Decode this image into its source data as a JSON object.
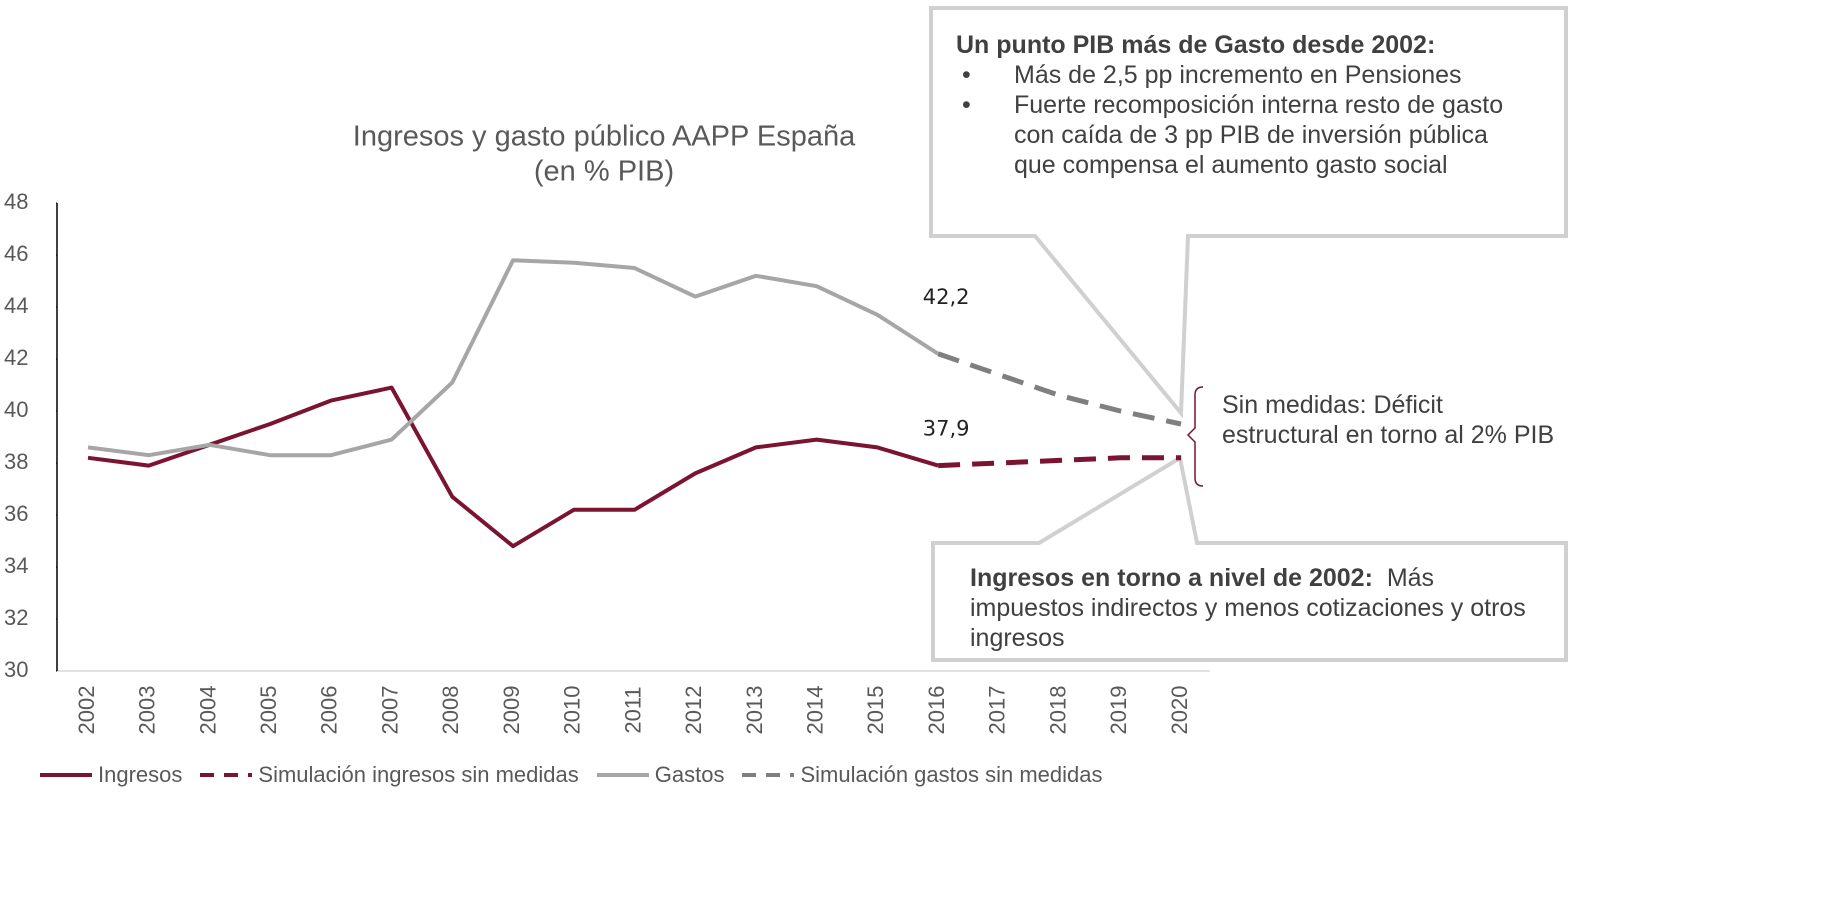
{
  "chart_data": {
    "type": "line",
    "title": "Ingresos y gasto público AAPP España",
    "subtitle": "(en % PIB)",
    "categories": [
      "2002",
      "2003",
      "2004",
      "2005",
      "2006",
      "2007",
      "2008",
      "2009",
      "2010",
      "2011",
      "2012",
      "2013",
      "2014",
      "2015",
      "2016",
      "2017",
      "2018",
      "2019",
      "2020"
    ],
    "ylim": [
      30,
      48
    ],
    "yticks": [
      30,
      32,
      34,
      36,
      38,
      40,
      42,
      44,
      46,
      48
    ],
    "series": [
      {
        "name": "Ingresos",
        "color": "#7b1431",
        "dashed": false,
        "values": [
          38.2,
          37.9,
          38.7,
          39.5,
          40.4,
          40.9,
          36.7,
          34.8,
          36.2,
          36.2,
          37.6,
          38.6,
          38.9,
          38.6,
          37.9,
          null,
          null,
          null,
          null
        ],
        "value_labels": [
          null,
          null,
          null,
          null,
          null,
          null,
          null,
          null,
          null,
          null,
          null,
          null,
          null,
          null,
          "37,9",
          null,
          null,
          null,
          null
        ]
      },
      {
        "name": "Simulación ingresos sin medidas",
        "color": "#7b1431",
        "dashed": true,
        "values": [
          null,
          null,
          null,
          null,
          null,
          null,
          null,
          null,
          null,
          null,
          null,
          null,
          null,
          null,
          37.9,
          38.0,
          38.1,
          38.2,
          38.2
        ]
      },
      {
        "name": "Gastos",
        "color": "#a6a6a6",
        "dashed": false,
        "values": [
          38.6,
          38.3,
          38.7,
          38.3,
          38.3,
          38.9,
          41.1,
          45.8,
          45.7,
          45.5,
          44.4,
          45.2,
          44.8,
          43.7,
          42.2,
          null,
          null,
          null,
          null
        ],
        "value_labels": [
          null,
          null,
          null,
          null,
          null,
          null,
          null,
          null,
          null,
          null,
          null,
          null,
          null,
          null,
          "42,2",
          null,
          null,
          null,
          null
        ]
      },
      {
        "name": "Simulación gastos sin medidas",
        "color": "#7f7f7f",
        "dashed": true,
        "values": [
          null,
          null,
          null,
          null,
          null,
          null,
          null,
          null,
          null,
          null,
          null,
          null,
          null,
          null,
          42.2,
          41.4,
          40.6,
          40.0,
          39.5
        ]
      }
    ],
    "annotations": {
      "gasto_box": {
        "title": "Un punto PIB más de Gasto desde 2002:",
        "items": [
          "Más de 2,5 pp incremento en Pensiones",
          "Fuerte recomposición interna resto de gasto con caída de 3 pp PIB de inversión pública que compensa el aumento gasto social"
        ]
      },
      "deficit_note": "Sin medidas: Déficit estructural en torno al 2% PIB",
      "ingresos_box": {
        "title": "Ingresos en torno a nivel de 2002:",
        "text": "Más impuestos indirectos y menos cotizaciones y otros ingresos"
      }
    }
  }
}
